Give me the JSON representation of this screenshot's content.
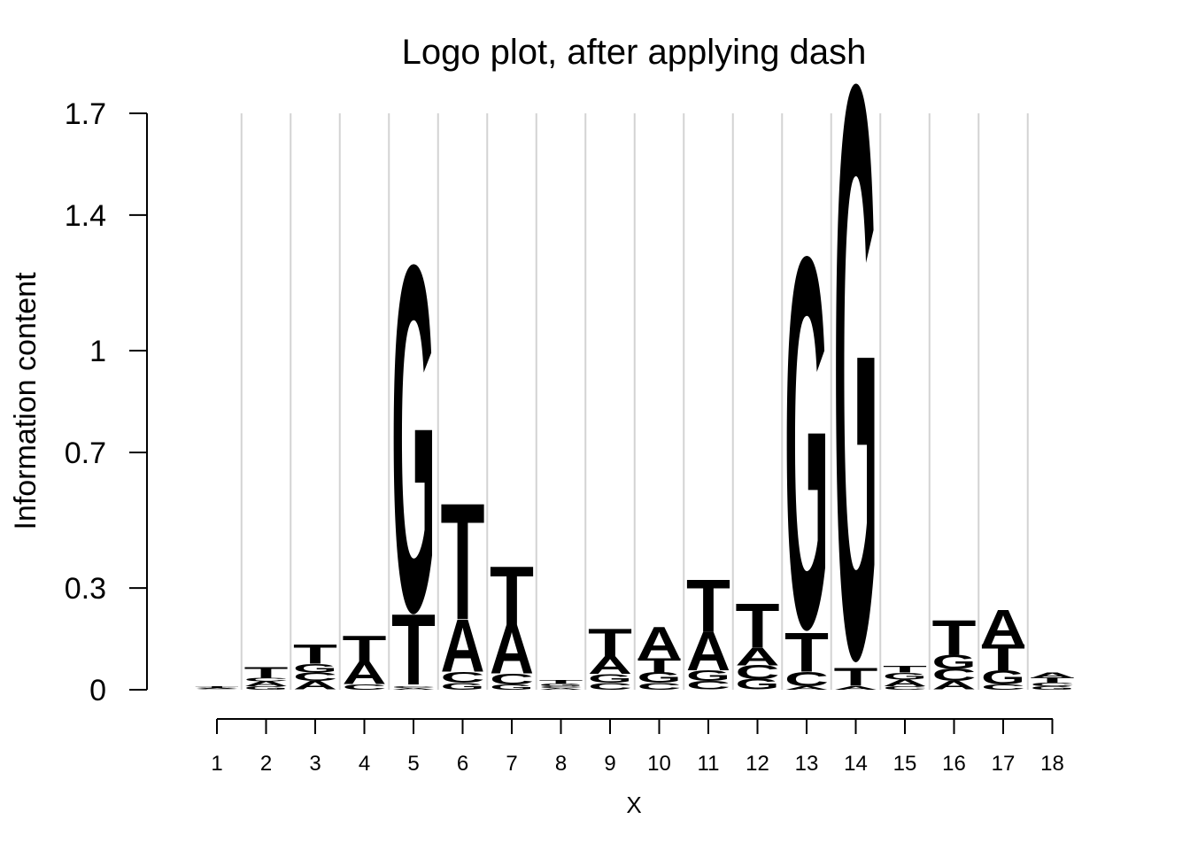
{
  "chart_data": {
    "type": "logo",
    "title": "Logo plot, after applying dash",
    "xlabel": "X",
    "ylabel": "Information content",
    "ylim": [
      0,
      1.7
    ],
    "yticks": [
      0,
      0.3,
      0.7,
      1,
      1.4,
      1.7
    ],
    "ytick_labels": [
      "0",
      "0.3",
      "0.7",
      "1",
      "1.4",
      "1.7"
    ],
    "positions": [
      1,
      2,
      3,
      4,
      5,
      6,
      7,
      8,
      9,
      10,
      11,
      12,
      13,
      14,
      15,
      16,
      17,
      18
    ],
    "grid": "vertical",
    "colors": {
      "A": "#d7191c",
      "C": "#fdae61",
      "G": "#abdda4",
      "T": "#2b83ba"
    },
    "stacks": [
      [
        [
          "C",
          0.002
        ],
        [
          "A",
          0.003
        ],
        [
          "G",
          0.002
        ],
        [
          "T",
          0.003
        ]
      ],
      [
        [
          "G",
          0.01
        ],
        [
          "A",
          0.015
        ],
        [
          "C",
          0.01
        ],
        [
          "T",
          0.03
        ]
      ],
      [
        [
          "A",
          0.025
        ],
        [
          "C",
          0.025
        ],
        [
          "G",
          0.025
        ],
        [
          "T",
          0.055
        ]
      ],
      [
        [
          "C",
          0.015
        ],
        [
          "A",
          0.065
        ],
        [
          "T",
          0.075
        ]
      ],
      [
        [
          "A",
          0.005
        ],
        [
          "C",
          0.005
        ],
        [
          "T",
          0.2
        ],
        [
          "G",
          0.98
        ]
      ],
      [
        [
          "G",
          0.02
        ],
        [
          "C",
          0.03
        ],
        [
          "A",
          0.15
        ],
        [
          "T",
          0.33
        ]
      ],
      [
        [
          "G",
          0.015
        ],
        [
          "C",
          0.03
        ],
        [
          "A",
          0.14
        ],
        [
          "T",
          0.17
        ]
      ],
      [
        [
          "A",
          0.005
        ],
        [
          "C",
          0.005
        ],
        [
          "G",
          0.008
        ],
        [
          "T",
          0.01
        ]
      ],
      [
        [
          "C",
          0.02
        ],
        [
          "G",
          0.025
        ],
        [
          "A",
          0.05
        ],
        [
          "T",
          0.08
        ]
      ],
      [
        [
          "C",
          0.02
        ],
        [
          "G",
          0.03
        ],
        [
          "T",
          0.04
        ],
        [
          "A",
          0.09
        ]
      ],
      [
        [
          "C",
          0.025
        ],
        [
          "G",
          0.03
        ],
        [
          "A",
          0.11
        ],
        [
          "T",
          0.15
        ]
      ],
      [
        [
          "G",
          0.03
        ],
        [
          "C",
          0.04
        ],
        [
          "A",
          0.05
        ],
        [
          "T",
          0.125
        ]
      ],
      [
        [
          "A",
          0.01
        ],
        [
          "C",
          0.04
        ],
        [
          "T",
          0.11
        ],
        [
          "G",
          1.05
        ]
      ],
      [
        [
          "A",
          0.01
        ],
        [
          "T",
          0.05
        ],
        [
          "G",
          1.62
        ]
      ],
      [
        [
          "C",
          0.01
        ],
        [
          "A",
          0.02
        ],
        [
          "G",
          0.02
        ],
        [
          "T",
          0.02
        ]
      ],
      [
        [
          "A",
          0.025
        ],
        [
          "C",
          0.035
        ],
        [
          "G",
          0.04
        ],
        [
          "T",
          0.1
        ]
      ],
      [
        [
          "C",
          0.015
        ],
        [
          "G",
          0.04
        ],
        [
          "T",
          0.075
        ],
        [
          "A",
          0.1
        ]
      ],
      [
        [
          "G",
          0.01
        ],
        [
          "C",
          0.01
        ],
        [
          "T",
          0.015
        ],
        [
          "A",
          0.015
        ]
      ]
    ]
  }
}
